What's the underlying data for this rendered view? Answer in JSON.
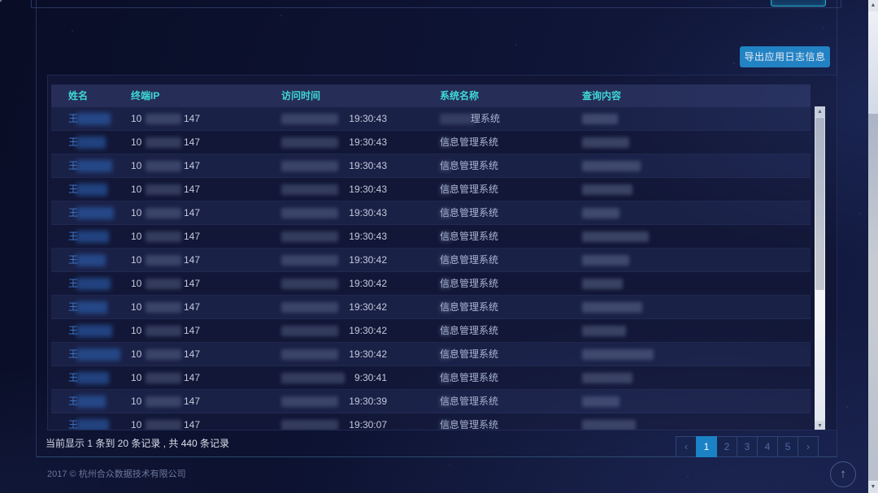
{
  "page": {
    "export_button": "导出应用日志信息",
    "summary": "当前显示 1 条到 20 条记录 , 共 440 条记录",
    "copyright": "2017 © 杭州合众数据技术有限公司"
  },
  "icons": {
    "back_to_top": "↑",
    "scroll_up": "▲",
    "scroll_down": "▼",
    "pager_prev": "‹",
    "pager_next": "›"
  },
  "colors": {
    "header_accent": "#3fd9d6",
    "export_button_bg": "#1f88c9",
    "active_page_bg": "#1b82c6",
    "name_link": "#3d7cd2"
  },
  "table": {
    "columns": [
      "姓名",
      "终端IP",
      "访问时间",
      "系统名称",
      "查询内容"
    ],
    "rows": [
      {
        "name": "王",
        "ip_prefix": "10",
        "ip_suffix": "147",
        "time": "19:30:43",
        "system": "理系统"
      },
      {
        "name": "王",
        "ip_prefix": "10",
        "ip_suffix": "147",
        "time": "19:30:43",
        "system": "信息管理系统"
      },
      {
        "name": "王",
        "ip_prefix": "10",
        "ip_suffix": "147",
        "time": "19:30:43",
        "system": "信息管理系统"
      },
      {
        "name": "王",
        "ip_prefix": "10",
        "ip_suffix": "147",
        "time": "19:30:43",
        "system": "信息管理系统"
      },
      {
        "name": "王",
        "ip_prefix": "10",
        "ip_suffix": "147",
        "time": "19:30:43",
        "system": "信息管理系统"
      },
      {
        "name": "王",
        "ip_prefix": "10",
        "ip_suffix": "147",
        "time": "19:30:43",
        "system": "信息管理系统"
      },
      {
        "name": "王",
        "ip_prefix": "10",
        "ip_suffix": "147",
        "time": "19:30:42",
        "system": "信息管理系统"
      },
      {
        "name": "王",
        "ip_prefix": "10",
        "ip_suffix": "147",
        "time": "19:30:42",
        "system": "信息管理系统"
      },
      {
        "name": "王",
        "ip_prefix": "10",
        "ip_suffix": "147",
        "time": "19:30:42",
        "system": "信息管理系统"
      },
      {
        "name": "王",
        "ip_prefix": "10",
        "ip_suffix": "147",
        "time": "19:30:42",
        "system": "信息管理系统"
      },
      {
        "name": "王",
        "ip_prefix": "10",
        "ip_suffix": "147",
        "time": "19:30:42",
        "system": "信息管理系统"
      },
      {
        "name": "王",
        "ip_prefix": "10",
        "ip_suffix": "147",
        "time": "9:30:41",
        "system": "信息管理系统"
      },
      {
        "name": "王",
        "ip_prefix": "10",
        "ip_suffix": "147",
        "time": "19:30:39",
        "system": "信息管理系统"
      },
      {
        "name": "王",
        "ip_prefix": "10",
        "ip_suffix": "147",
        "time": "19:30:07",
        "system": "信息管理系统"
      }
    ]
  },
  "pagination": {
    "prev": "‹",
    "pages": [
      "1",
      "2",
      "3",
      "4",
      "5"
    ],
    "active": "1",
    "next": "›"
  }
}
